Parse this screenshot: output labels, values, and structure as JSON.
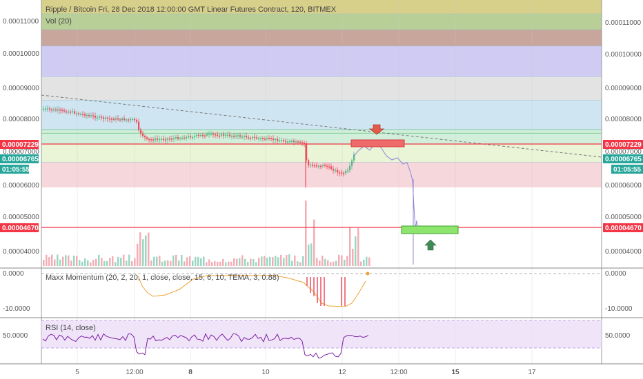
{
  "header": {
    "title": "Ripple / Bitcoin Fri, 28 Dec 2018 12:00:00 GMT Linear Futures Contract, 120, BITMEX",
    "vol_label": "Vol (20)"
  },
  "indicators": {
    "momentum_label": "Maxx Momentum (20, 2, 20, 1, close, close, 15, 6, 10, TEMA, 3, 0.88)",
    "rsi_label": "RSI (14, close)"
  },
  "price_axis": {
    "ticks": [
      "0.00011000",
      "0.00010000",
      "0.00009000",
      "0.00008000",
      "0.00006000",
      "0.00005000",
      "0.00004000"
    ],
    "ticks_right": [
      "0.00011000",
      "0.00010000",
      "0.00009000",
      "0.00008000",
      "0.00006000",
      "0.00005000",
      "0.00004000"
    ],
    "hidden_tick": "0.00007000",
    "badges": {
      "upper_level": "0.00007229",
      "last_price": "0.00006765",
      "countdown": "01:05:55",
      "lower_level": "0.00004670"
    }
  },
  "momentum_axis": {
    "ticks": [
      "0.0000",
      "-10.0000"
    ]
  },
  "rsi_axis": {
    "ticks": [
      "50.0000"
    ]
  },
  "time_axis": {
    "ticks": [
      "5",
      "12:00",
      "8",
      "10",
      "12",
      "12:00",
      "15",
      "17"
    ]
  },
  "colors": {
    "up": "#53b987",
    "down": "#eb4d5c",
    "level_line": "#f23645",
    "badge_red": "#f23645",
    "badge_green": "#26a69a",
    "rsi_fill": "#e9d8f6"
  },
  "fib_zones": [
    {
      "top": 0.0001197,
      "bottom": 0.0001125,
      "color": "#d6d08a"
    },
    {
      "top": 0.0001125,
      "bottom": 0.0001077,
      "color": "#b9cf98"
    },
    {
      "top": 0.0001077,
      "bottom": 0.0001027,
      "color": "#c9a69b"
    },
    {
      "top": 0.0001027,
      "bottom": 9.34e-05,
      "color": "#cfcbf3"
    },
    {
      "top": 9.34e-05,
      "bottom": 8.62e-05,
      "color": "#e3e3e3"
    },
    {
      "top": 8.62e-05,
      "bottom": 7.72e-05,
      "color": "#cfe6f2"
    },
    {
      "top": 7.72e-05,
      "bottom": 7.29e-05,
      "color": "#d2efdc"
    },
    {
      "top": 7.29e-05,
      "bottom": 6.74e-05,
      "color": "#eaf4d6"
    },
    {
      "top": 6.74e-05,
      "bottom": 5.97e-05,
      "color": "#f6d7db"
    }
  ]
}
